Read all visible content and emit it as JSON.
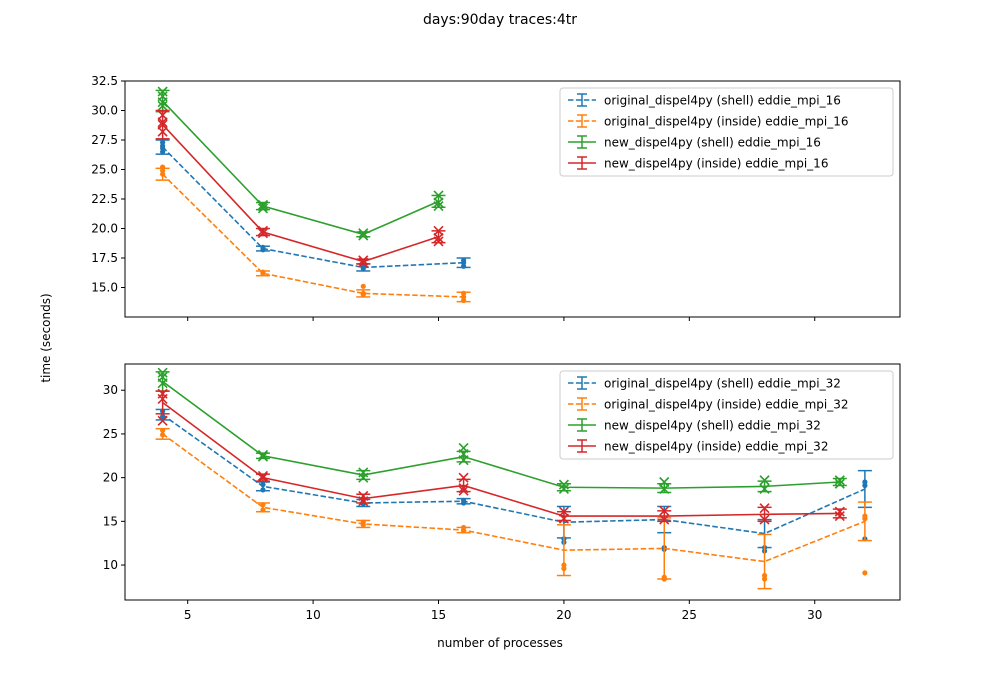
{
  "figure": {
    "suptitle": "days:90day traces:4tr",
    "shared_ylabel": "time (seconds)",
    "shared_xlabel": "number of processes"
  },
  "colors": {
    "blue": "#1f77b4",
    "orange": "#ff7f0e",
    "green": "#2ca02c",
    "red": "#d62728"
  },
  "chart_data": [
    {
      "type": "line",
      "xlim": [
        2.5,
        33.4
      ],
      "ylim": [
        12.5,
        32.5
      ],
      "xticks": [
        5,
        10,
        15,
        20,
        25,
        30
      ],
      "show_xtick_labels": false,
      "yticks": [
        15.0,
        17.5,
        20.0,
        22.5,
        25.0,
        27.5,
        30.0,
        32.5
      ],
      "ytick_labels": [
        "15.0",
        "17.5",
        "20.0",
        "22.5",
        "25.0",
        "27.5",
        "30.0",
        "32.5"
      ],
      "legend_position": "upper right",
      "series": [
        {
          "name": "original_dispel4py (shell) eddie_mpi_16",
          "color": "blue",
          "linestyle": "dashed",
          "marker": "dot",
          "x": [
            4,
            8,
            12,
            16
          ],
          "y": [
            26.9,
            18.3,
            16.7,
            17.1
          ],
          "err": [
            0.6,
            0.2,
            0.3,
            0.4
          ],
          "points": [
            [
              4,
              26.5
            ],
            [
              4,
              27.0
            ],
            [
              4,
              27.3
            ],
            [
              4,
              26.8
            ],
            [
              8,
              18.2
            ],
            [
              8,
              18.4
            ],
            [
              12,
              16.6
            ],
            [
              12,
              16.8
            ],
            [
              16,
              16.8
            ],
            [
              16,
              17.3
            ],
            [
              16,
              17.1
            ]
          ]
        },
        {
          "name": "original_dispel4py (inside) eddie_mpi_16",
          "color": "orange",
          "linestyle": "dashed",
          "marker": "dot",
          "x": [
            4,
            8,
            12,
            16
          ],
          "y": [
            24.6,
            16.2,
            14.5,
            14.2
          ],
          "err": [
            0.5,
            0.2,
            0.3,
            0.4
          ],
          "points": [
            [
              4,
              24.6
            ],
            [
              4,
              25.2
            ],
            [
              4,
              24.9
            ],
            [
              8,
              16.2
            ],
            [
              8,
              16.3
            ],
            [
              12,
              15.1
            ],
            [
              12,
              14.4
            ],
            [
              12,
              14.5
            ],
            [
              16,
              13.9
            ],
            [
              16,
              14.5
            ],
            [
              16,
              14.2
            ]
          ]
        },
        {
          "name": "new_dispel4py (shell) eddie_mpi_16",
          "color": "green",
          "linestyle": "solid",
          "marker": "x",
          "x": [
            4,
            8,
            12,
            15
          ],
          "y": [
            30.8,
            21.9,
            19.5,
            22.3
          ],
          "err": [
            0.9,
            0.3,
            0.2,
            0.5
          ],
          "points": [
            [
              4,
              31.6
            ],
            [
              4,
              31.2
            ],
            [
              4,
              30.7
            ],
            [
              4,
              30.4
            ],
            [
              8,
              21.7
            ],
            [
              8,
              22.0
            ],
            [
              8,
              21.9
            ],
            [
              12,
              19.4
            ],
            [
              12,
              19.6
            ],
            [
              15,
              22.8
            ],
            [
              15,
              22.2
            ],
            [
              15,
              21.9
            ]
          ]
        },
        {
          "name": "new_dispel4py (inside) eddie_mpi_16",
          "color": "red",
          "linestyle": "solid",
          "marker": "x",
          "x": [
            4,
            8,
            12,
            15
          ],
          "y": [
            28.8,
            19.7,
            17.2,
            19.3
          ],
          "err": [
            1.2,
            0.3,
            0.2,
            0.5
          ],
          "points": [
            [
              4,
              29.6
            ],
            [
              4,
              29.0
            ],
            [
              4,
              28.8
            ],
            [
              4,
              28.2
            ],
            [
              8,
              19.6
            ],
            [
              8,
              19.8
            ],
            [
              12,
              17.1
            ],
            [
              12,
              17.3
            ],
            [
              15,
              19.8
            ],
            [
              15,
              19.2
            ],
            [
              15,
              18.9
            ]
          ]
        }
      ]
    },
    {
      "type": "line",
      "xlim": [
        2.5,
        33.4
      ],
      "ylim": [
        6,
        33
      ],
      "xticks": [
        5,
        10,
        15,
        20,
        25,
        30
      ],
      "xtick_labels": [
        "5",
        "10",
        "15",
        "20",
        "25",
        "30"
      ],
      "show_xtick_labels": true,
      "yticks": [
        10,
        15,
        20,
        25,
        30
      ],
      "ytick_labels": [
        "10",
        "15",
        "20",
        "25",
        "30"
      ],
      "legend_position": "upper right",
      "series": [
        {
          "name": "original_dispel4py (shell) eddie_mpi_32",
          "color": "blue",
          "linestyle": "dashed",
          "marker": "dot",
          "x": [
            4,
            8,
            12,
            16,
            20,
            24,
            28,
            32
          ],
          "y": [
            27.2,
            19.0,
            17.1,
            17.3,
            14.9,
            15.2,
            13.6,
            18.7
          ],
          "err": [
            0.6,
            0.5,
            0.4,
            0.3,
            1.8,
            1.5,
            1.6,
            2.1
          ],
          "points": [
            [
              4,
              27.6
            ],
            [
              4,
              27.0
            ],
            [
              8,
              18.6
            ],
            [
              8,
              19.2
            ],
            [
              12,
              17.0
            ],
            [
              12,
              17.3
            ],
            [
              16,
              17.1
            ],
            [
              16,
              17.4
            ],
            [
              20,
              12.6
            ],
            [
              20,
              13.0
            ],
            [
              24,
              11.8
            ],
            [
              24,
              12.0
            ],
            [
              28,
              11.6
            ],
            [
              28,
              12.0
            ],
            [
              32,
              19.5
            ],
            [
              32,
              19.1
            ],
            [
              32,
              13.0
            ]
          ]
        },
        {
          "name": "original_dispel4py (inside) eddie_mpi_32",
          "color": "orange",
          "linestyle": "dashed",
          "marker": "dot",
          "x": [
            4,
            8,
            12,
            16,
            20,
            24,
            28,
            32
          ],
          "y": [
            25.0,
            16.6,
            14.7,
            14.0,
            11.7,
            11.9,
            10.4,
            15.0
          ],
          "err": [
            0.6,
            0.5,
            0.4,
            0.3,
            2.9,
            3.5,
            3.1,
            2.2
          ],
          "points": [
            [
              4,
              25.4
            ],
            [
              4,
              24.9
            ],
            [
              8,
              16.3
            ],
            [
              8,
              16.9
            ],
            [
              12,
              14.6
            ],
            [
              12,
              14.9
            ],
            [
              16,
              14.3
            ],
            [
              16,
              13.9
            ],
            [
              20,
              9.6
            ],
            [
              20,
              10.0
            ],
            [
              24,
              8.6
            ],
            [
              24,
              8.4
            ],
            [
              28,
              8.4
            ],
            [
              28,
              8.8
            ],
            [
              32,
              9.1
            ],
            [
              32,
              15.6
            ],
            [
              32,
              15.3
            ]
          ]
        },
        {
          "name": "new_dispel4py (shell) eddie_mpi_32",
          "color": "green",
          "linestyle": "solid",
          "marker": "x",
          "x": [
            4,
            8,
            12,
            16,
            20,
            24,
            28,
            31
          ],
          "y": [
            31.0,
            22.5,
            20.3,
            22.4,
            18.9,
            18.8,
            19.0,
            19.5
          ],
          "err": [
            1.1,
            0.3,
            0.5,
            0.6,
            0.4,
            0.5,
            0.6,
            0.4
          ],
          "points": [
            [
              4,
              32.0
            ],
            [
              4,
              31.5
            ],
            [
              4,
              30.8
            ],
            [
              8,
              22.4
            ],
            [
              8,
              22.6
            ],
            [
              12,
              20.6
            ],
            [
              12,
              20.0
            ],
            [
              16,
              23.4
            ],
            [
              16,
              22.0
            ],
            [
              16,
              22.7
            ],
            [
              20,
              19.2
            ],
            [
              20,
              18.7
            ],
            [
              24,
              19.5
            ],
            [
              24,
              18.7
            ],
            [
              28,
              19.7
            ],
            [
              28,
              18.7
            ],
            [
              31,
              19.7
            ],
            [
              31,
              19.3
            ]
          ]
        },
        {
          "name": "new_dispel4py (inside) eddie_mpi_32",
          "color": "red",
          "linestyle": "solid",
          "marker": "x",
          "x": [
            4,
            8,
            12,
            16,
            20,
            24,
            28,
            31
          ],
          "y": [
            28.6,
            20.0,
            17.6,
            19.1,
            15.6,
            15.6,
            15.8,
            15.9
          ],
          "err": [
            1.3,
            0.4,
            0.5,
            0.7,
            0.5,
            0.6,
            0.8,
            0.5
          ],
          "points": [
            [
              4,
              29.6
            ],
            [
              4,
              29.0
            ],
            [
              4,
              26.5
            ],
            [
              8,
              20.0
            ],
            [
              8,
              20.2
            ],
            [
              12,
              17.9
            ],
            [
              12,
              17.3
            ],
            [
              16,
              20.0
            ],
            [
              16,
              18.8
            ],
            [
              16,
              18.5
            ],
            [
              20,
              16.1
            ],
            [
              20,
              15.3
            ],
            [
              24,
              16.2
            ],
            [
              24,
              15.2
            ],
            [
              28,
              16.5
            ],
            [
              28,
              15.2
            ],
            [
              31,
              16.1
            ],
            [
              31,
              15.6
            ]
          ]
        }
      ]
    }
  ]
}
